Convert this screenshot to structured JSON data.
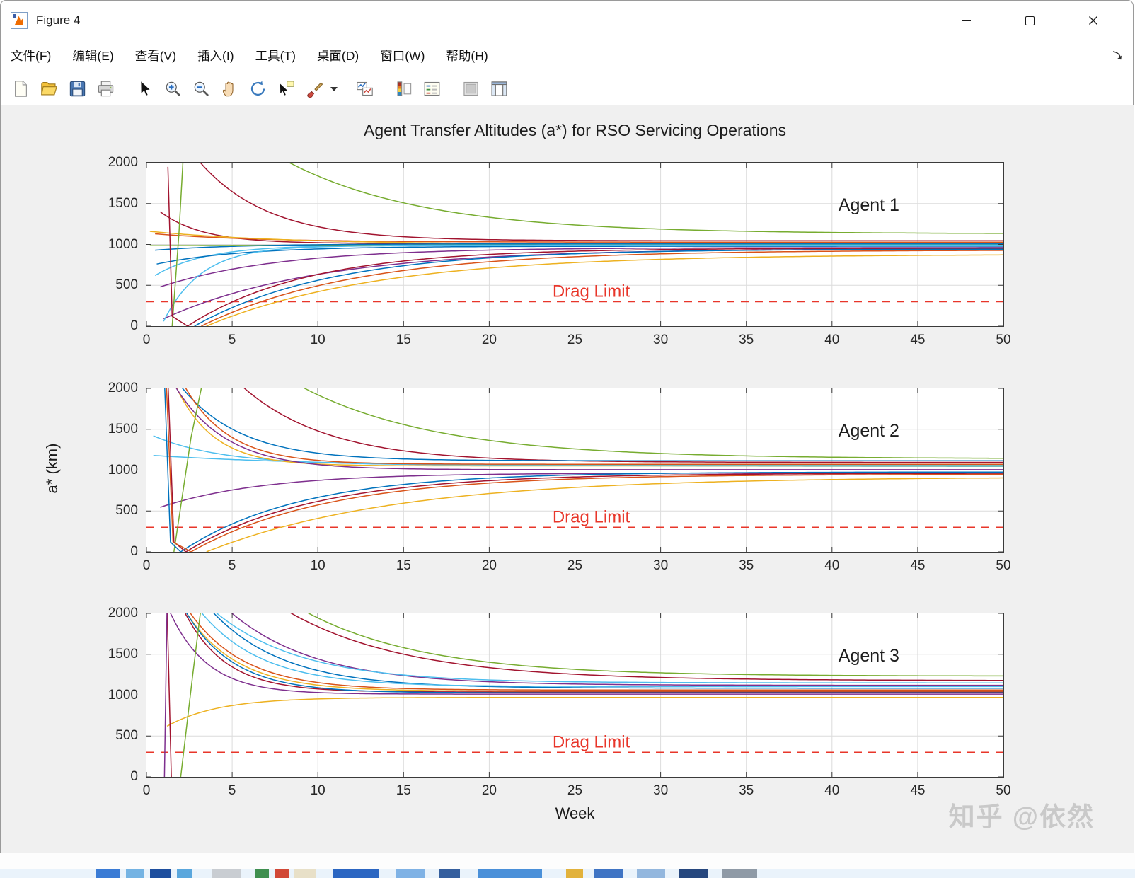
{
  "window": {
    "app_icon": "matlab-figure-icon",
    "title": "Figure 4",
    "caption_buttons": [
      "minimize",
      "maximize",
      "close"
    ]
  },
  "menu": {
    "items": [
      {
        "id": "file",
        "label": "文件(F)"
      },
      {
        "id": "edit",
        "label": "编辑(E)"
      },
      {
        "id": "view",
        "label": "查看(V)"
      },
      {
        "id": "insert",
        "label": "插入(I)"
      },
      {
        "id": "tools",
        "label": "工具(T)"
      },
      {
        "id": "desktop",
        "label": "桌面(D)"
      },
      {
        "id": "window",
        "label": "窗口(W)"
      },
      {
        "id": "help",
        "label": "帮助(H)"
      }
    ],
    "dock_arrow_icon": "dock-figure-arrow-icon"
  },
  "toolbar": {
    "icons": [
      "new-document",
      "open-folder",
      "save",
      "print",
      "edit-plot-arrow",
      "zoom-in",
      "zoom-out",
      "pan-hand",
      "rotate-3d",
      "data-cursor",
      "brush",
      "brush-dropdown",
      "link-plots",
      "insert-colorbar",
      "insert-legend",
      "hide-plot-tools",
      "show-plot-tools"
    ]
  },
  "figure": {
    "watermark": "知乎 @依然"
  },
  "chart_data": {
    "type": "line",
    "title": "Agent Transfer Altitudes (a*) for RSO Servicing Operations",
    "xlabel": "Week",
    "ylabel": "a* (km)",
    "xlim": [
      0,
      50
    ],
    "ylim": [
      0,
      2000
    ],
    "xticks": [
      0,
      5,
      10,
      15,
      20,
      25,
      30,
      35,
      40,
      45,
      50
    ],
    "yticks": [
      0,
      500,
      1000,
      1500,
      2000
    ],
    "grid": true,
    "axis_color": "#3a3a3a",
    "grid_color": "#dcdcdc",
    "drag_limit_color": "#e8362a",
    "line_model_note": "exp: y(x)=yinf+(y0-yinf)*exp(-(x-x0)/tau) for x>=x0 (km vs weeks); seg: polyline through pts [week,km]; curves converge toward ~1000 km",
    "subplots": [
      {
        "agent_label": "Agent 1",
        "drag_limit": {
          "y": 300,
          "label": "Drag Limit"
        },
        "series": [
          {
            "color": "#77AC30",
            "model": "exp",
            "x0": 0,
            "y0": 3600,
            "yinf": 1130,
            "tau": 8
          },
          {
            "color": "#A2142F",
            "model": "exp",
            "x0": 1.2,
            "y0": 2600,
            "yinf": 1045,
            "tau": 4
          },
          {
            "color": "#A2142F",
            "model": "exp",
            "x0": 0.8,
            "y0": 1400,
            "yinf": 1012,
            "tau": 2.5
          },
          {
            "color": "#D95319",
            "model": "exp",
            "x0": 0.5,
            "y0": 1130,
            "yinf": 1028,
            "tau": 6
          },
          {
            "color": "#EDB120",
            "model": "exp",
            "x0": 0.2,
            "y0": 1160,
            "yinf": 998,
            "tau": 8
          },
          {
            "color": "#77AC30",
            "model": "exp",
            "x0": 0.2,
            "y0": 985,
            "yinf": 1002,
            "tau": 30
          },
          {
            "color": "#0072BD",
            "model": "exp",
            "x0": 0.5,
            "y0": 930,
            "yinf": 1008,
            "tau": 5
          },
          {
            "color": "#4DBEEE",
            "model": "exp",
            "x0": 0.5,
            "y0": 620,
            "yinf": 992,
            "tau": 3
          },
          {
            "color": "#0072BD",
            "model": "exp",
            "x0": 0.6,
            "y0": 760,
            "yinf": 978,
            "tau": 5
          },
          {
            "color": "#7E2F8E",
            "model": "exp",
            "x0": 0.8,
            "y0": 480,
            "yinf": 962,
            "tau": 7
          },
          {
            "color": "#7E2F8E",
            "model": "exp",
            "x0": 1.0,
            "y0": 90,
            "yinf": 950,
            "tau": 9
          },
          {
            "color": "#0072BD",
            "model": "exp",
            "x0": 2.8,
            "y0": 0,
            "yinf": 945,
            "tau": 8
          },
          {
            "color": "#D95319",
            "model": "exp",
            "x0": 3.2,
            "y0": 0,
            "yinf": 932,
            "tau": 9
          },
          {
            "color": "#A2142F",
            "model": "exp",
            "x0": 2.4,
            "y0": 0,
            "yinf": 955,
            "tau": 7
          },
          {
            "color": "#EDB120",
            "model": "exp",
            "x0": 3.5,
            "y0": 0,
            "yinf": 880,
            "tau": 10
          },
          {
            "color": "#4DBEEE",
            "model": "exp",
            "x0": 1.0,
            "y0": 60,
            "yinf": 985,
            "tau": 2.2
          },
          {
            "color": "#77AC30",
            "model": "seg",
            "pts": [
              [
                1.5,
                0
              ],
              [
                1.9,
                1150
              ],
              [
                2.15,
                2100
              ]
            ]
          },
          {
            "color": "#A2142F",
            "model": "seg",
            "pts": [
              [
                1.25,
                1950
              ],
              [
                1.5,
                120
              ],
              [
                2.4,
                0
              ]
            ]
          }
        ]
      },
      {
        "agent_label": "Agent 2",
        "drag_limit": {
          "y": 300,
          "label": "Drag Limit"
        },
        "series": [
          {
            "color": "#A2142F",
            "model": "exp",
            "x0": 1.5,
            "y0": 3200,
            "yinf": 1095,
            "tau": 5
          },
          {
            "color": "#77AC30",
            "model": "exp",
            "x0": 0.2,
            "y0": 3800,
            "yinf": 1140,
            "tau": 8
          },
          {
            "color": "#0072BD",
            "model": "exp",
            "x0": 0.8,
            "y0": 2400,
            "yinf": 1115,
            "tau": 3.5
          },
          {
            "color": "#4DBEEE",
            "model": "exp",
            "x0": 0.4,
            "y0": 1420,
            "yinf": 1062,
            "tau": 4
          },
          {
            "color": "#4DBEEE",
            "model": "exp",
            "x0": 0.4,
            "y0": 1180,
            "yinf": 1045,
            "tau": 10
          },
          {
            "color": "#D95319",
            "model": "exp",
            "x0": 1.0,
            "y0": 2600,
            "yinf": 1072,
            "tau": 2.6
          },
          {
            "color": "#EDB120",
            "model": "exp",
            "x0": 1.0,
            "y0": 2400,
            "yinf": 1052,
            "tau": 2.2
          },
          {
            "color": "#7E2F8E",
            "model": "exp",
            "x0": 0.8,
            "y0": 545,
            "yinf": 965,
            "tau": 6
          },
          {
            "color": "#7E2F8E",
            "model": "exp",
            "x0": 1.2,
            "y0": 2200,
            "yinf": 1005,
            "tau": 3
          },
          {
            "color": "#0072BD",
            "model": "exp",
            "x0": 2.0,
            "y0": 0,
            "yinf": 978,
            "tau": 7
          },
          {
            "color": "#A2142F",
            "model": "exp",
            "x0": 2.3,
            "y0": 0,
            "yinf": 962,
            "tau": 7.5
          },
          {
            "color": "#D95319",
            "model": "exp",
            "x0": 2.6,
            "y0": 0,
            "yinf": 950,
            "tau": 8
          },
          {
            "color": "#EDB120",
            "model": "exp",
            "x0": 3.5,
            "y0": 0,
            "yinf": 918,
            "tau": 11
          },
          {
            "color": "#77AC30",
            "model": "seg",
            "pts": [
              [
                1.6,
                0
              ],
              [
                2.6,
                1400
              ],
              [
                3.3,
                2100
              ]
            ]
          },
          {
            "color": "#0072BD",
            "model": "seg",
            "pts": [
              [
                1.05,
                2100
              ],
              [
                1.4,
                120
              ],
              [
                2.0,
                0
              ]
            ]
          },
          {
            "color": "#A2142F",
            "model": "seg",
            "pts": [
              [
                1.25,
                2100
              ],
              [
                1.6,
                120
              ],
              [
                2.3,
                0
              ]
            ]
          },
          {
            "color": "#D95319",
            "model": "seg",
            "pts": [
              [
                1.15,
                2100
              ],
              [
                1.55,
                120
              ],
              [
                2.6,
                0
              ]
            ]
          }
        ]
      },
      {
        "agent_label": "Agent 3",
        "drag_limit": {
          "y": 300,
          "label": "Drag Limit"
        },
        "series": [
          {
            "color": "#A2142F",
            "model": "exp",
            "x0": 1.5,
            "y0": 3400,
            "yinf": 1178,
            "tau": 7
          },
          {
            "color": "#77AC30",
            "model": "exp",
            "x0": 0.5,
            "y0": 4000,
            "yinf": 1232,
            "tau": 7
          },
          {
            "color": "#7E2F8E",
            "model": "exp",
            "x0": 1.2,
            "y0": 3000,
            "yinf": 1120,
            "tau": 5
          },
          {
            "color": "#0072BD",
            "model": "exp",
            "x0": 1.3,
            "y0": 2800,
            "yinf": 1085,
            "tau": 4.2
          },
          {
            "color": "#4DBEEE",
            "model": "exp",
            "x0": 1.4,
            "y0": 2600,
            "yinf": 1105,
            "tau": 3.6
          },
          {
            "color": "#4DBEEE",
            "model": "exp",
            "x0": 1.8,
            "y0": 2500,
            "yinf": 1150,
            "tau": 5
          },
          {
            "color": "#D95319",
            "model": "exp",
            "x0": 1.2,
            "y0": 2500,
            "yinf": 1062,
            "tau": 3.2
          },
          {
            "color": "#EDB120",
            "model": "exp",
            "x0": 1.3,
            "y0": 2400,
            "yinf": 1048,
            "tau": 3
          },
          {
            "color": "#A2142F",
            "model": "exp",
            "x0": 1.1,
            "y0": 2600,
            "yinf": 1038,
            "tau": 2.4
          },
          {
            "color": "#0072BD",
            "model": "exp",
            "x0": 1.6,
            "y0": 2300,
            "yinf": 1028,
            "tau": 2.8
          },
          {
            "color": "#7E2F8E",
            "model": "exp",
            "x0": 1.0,
            "y0": 2200,
            "yinf": 1012,
            "tau": 2.2
          },
          {
            "color": "#EDB120",
            "model": "exp",
            "x0": 1.2,
            "y0": 620,
            "yinf": 972,
            "tau": 3
          },
          {
            "color": "#77AC30",
            "model": "seg",
            "pts": [
              [
                2.0,
                0
              ],
              [
                2.7,
                1250
              ],
              [
                3.2,
                2100
              ]
            ]
          },
          {
            "color": "#A2142F",
            "model": "seg",
            "pts": [
              [
                1.2,
                2100
              ],
              [
                1.45,
                0
              ]
            ]
          },
          {
            "color": "#7E2F8E",
            "model": "seg",
            "pts": [
              [
                1.05,
                0
              ],
              [
                1.2,
                2100
              ]
            ]
          }
        ]
      }
    ]
  }
}
